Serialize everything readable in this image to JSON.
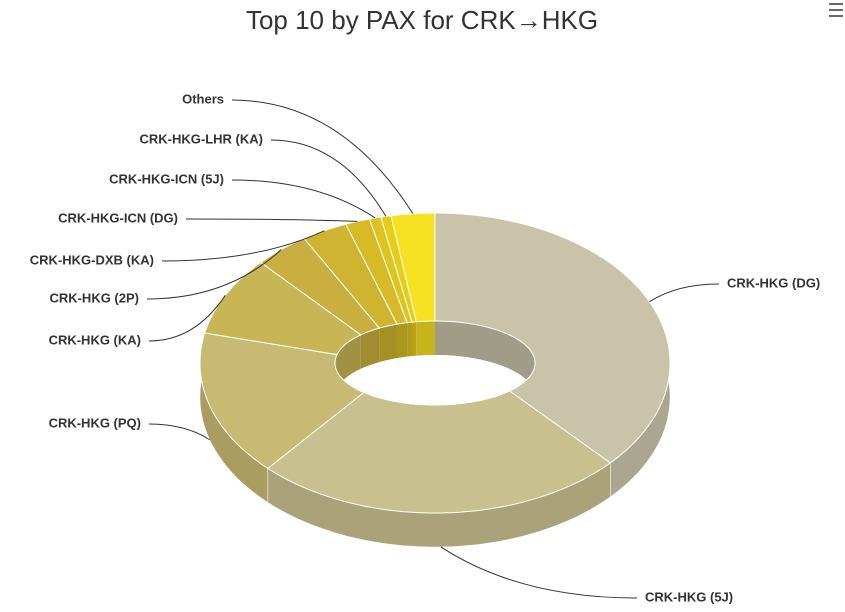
{
  "chart_data": {
    "type": "donut",
    "title": "Top 10 by PAX for CRK→HKG",
    "categories": [
      "CRK-HKG (DG)",
      "CRK-HKG (5J)",
      "CRK-HKG (PQ)",
      "CRK-HKG (KA)",
      "CRK-HKG (2P)",
      "CRK-HKG-DXB (KA)",
      "CRK-HKG-ICN (DG)",
      "CRK-HKG-ICN (5J)",
      "CRK-HKG-LHR (KA)",
      "Others"
    ],
    "values": [
      36.6,
      26.0,
      15.6,
      8.5,
      3.9,
      3.2,
      1.7,
      0.8,
      0.7,
      3.0
    ],
    "colors": [
      "#c9c3a9",
      "#c8c08e",
      "#c8b973",
      "#c8b556",
      "#c9af40",
      "#ceb430",
      "#d6bb26",
      "#dec420",
      "#e8cd18",
      "#f7e222"
    ]
  }
}
